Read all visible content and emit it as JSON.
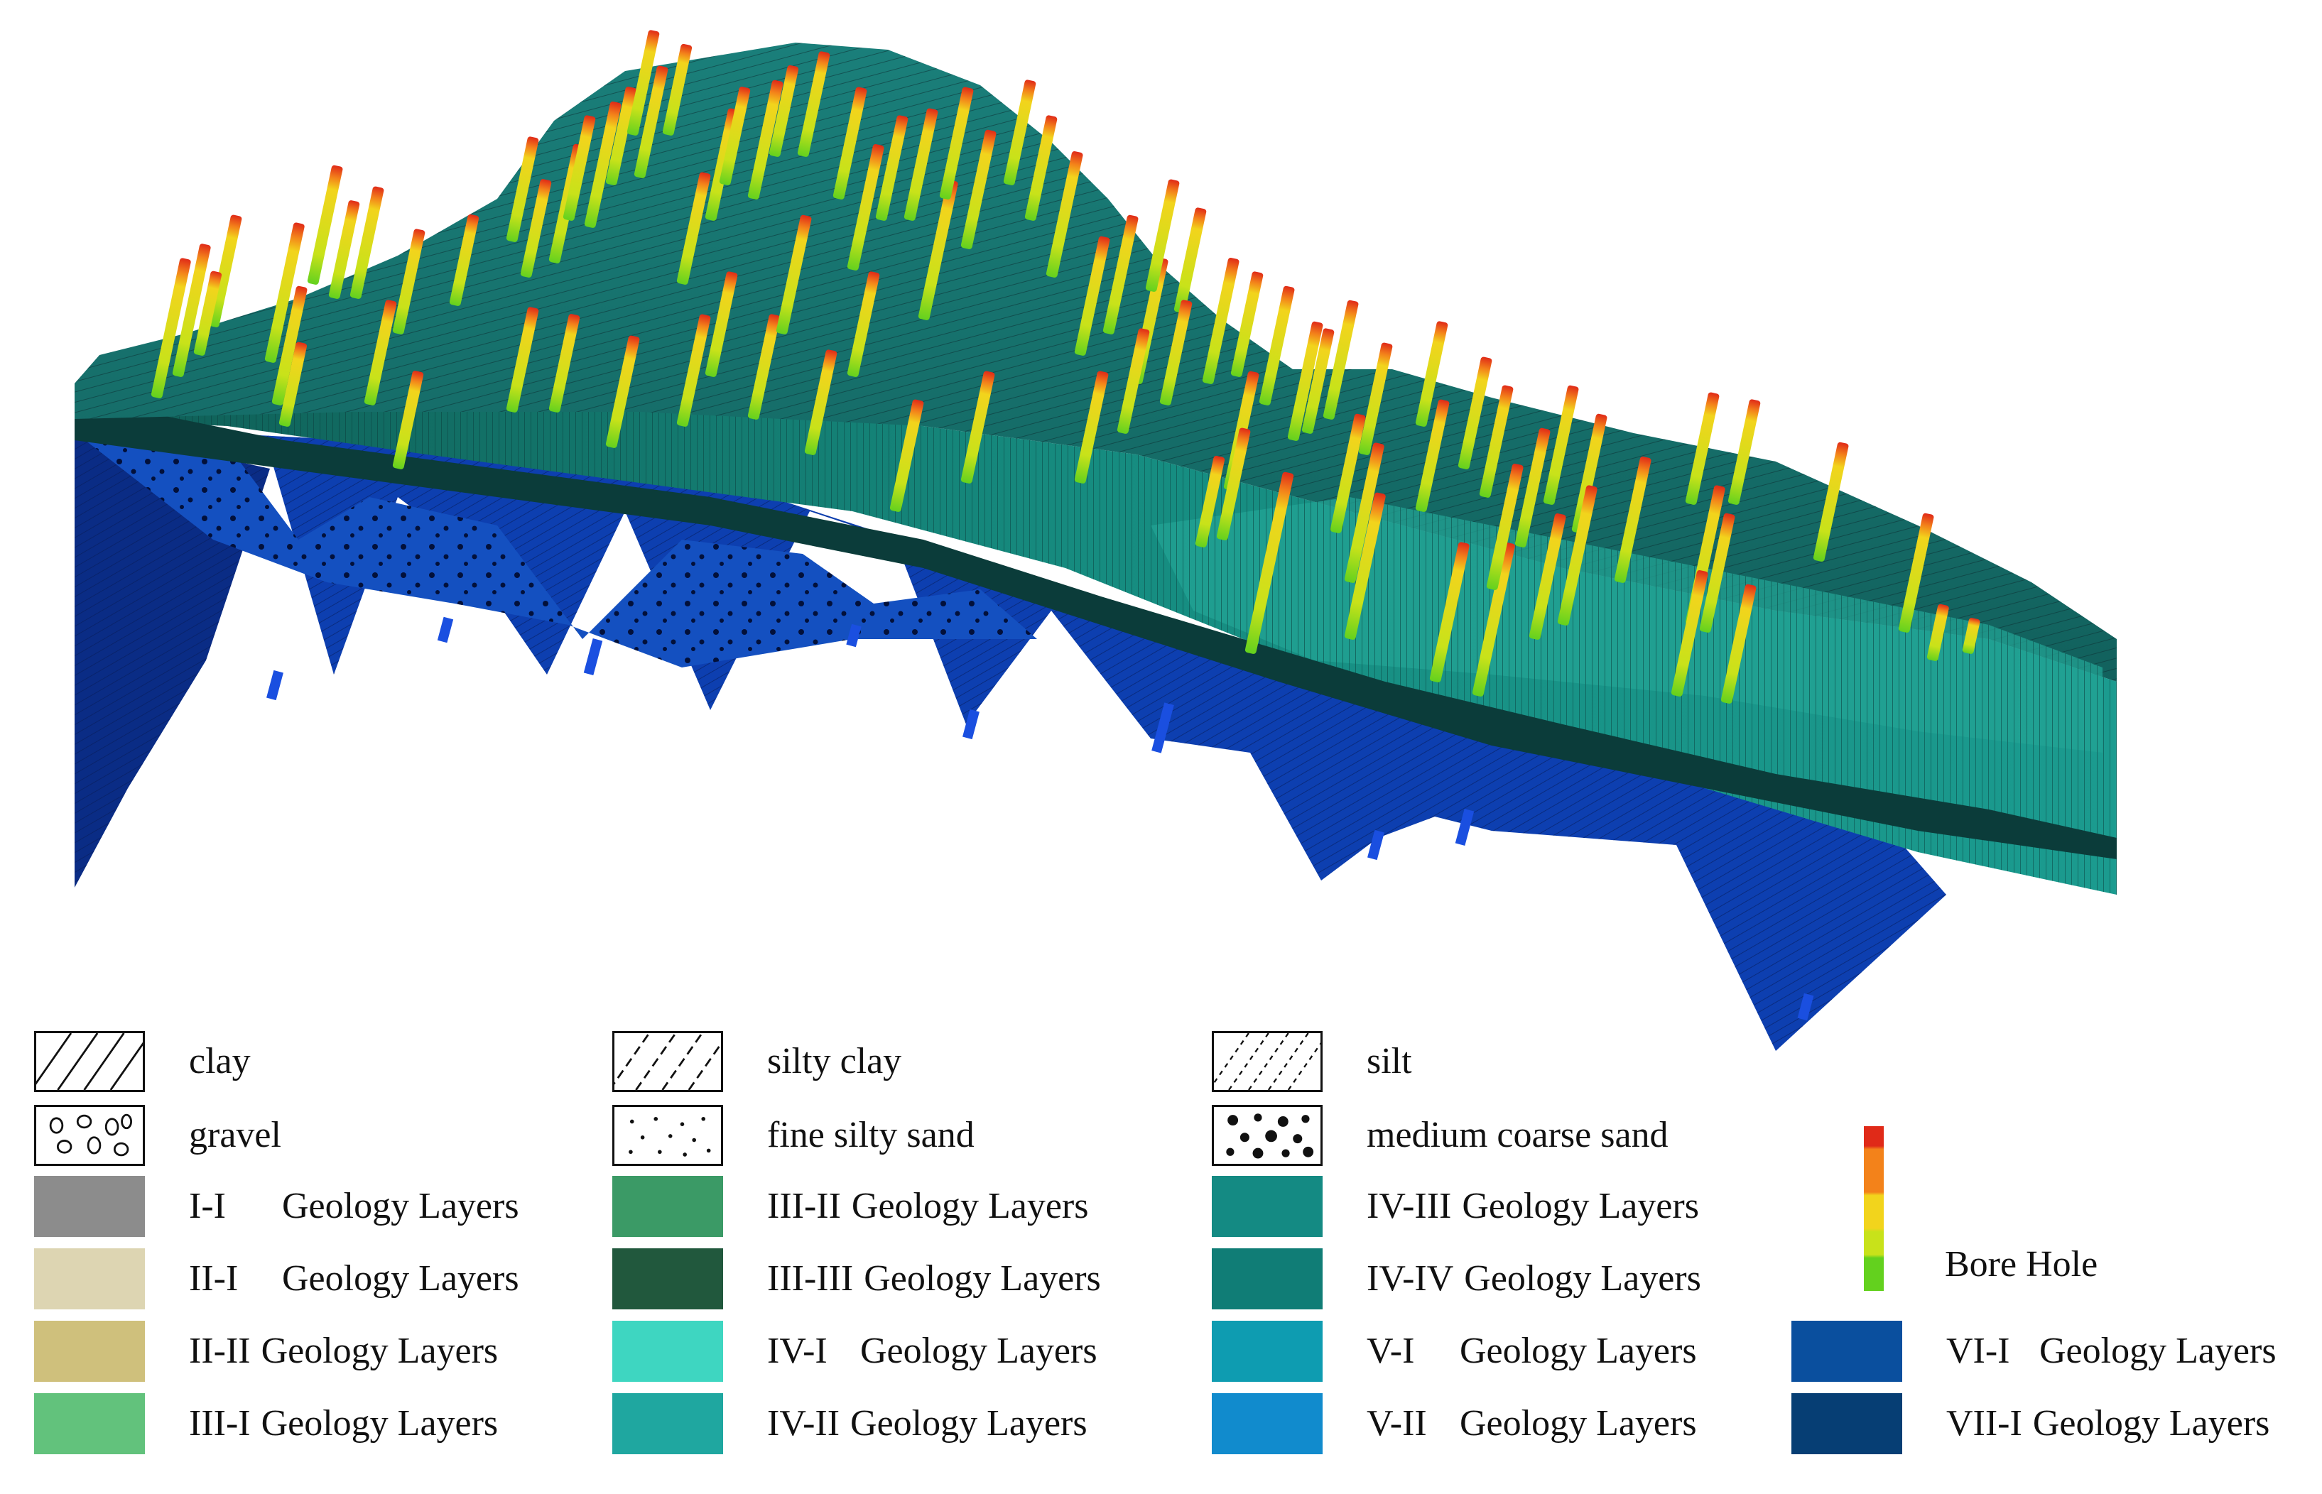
{
  "legend": {
    "patterns": [
      {
        "id": "clay",
        "label": "clay"
      },
      {
        "id": "silty-clay",
        "label": "silty clay"
      },
      {
        "id": "silt",
        "label": "silt"
      },
      {
        "id": "gravel",
        "label": "gravel"
      },
      {
        "id": "fine-silty-sand",
        "label": "fine silty sand"
      },
      {
        "id": "medium-coarse-sand",
        "label": "medium coarse sand"
      }
    ],
    "layers": [
      {
        "code": "I-I",
        "text": "Geology Layers",
        "color": "#8c8c8c"
      },
      {
        "code": "II-I",
        "text": "Geology Layers",
        "color": "#ddd5b2"
      },
      {
        "code": "II-II",
        "text": "Geology Layers",
        "color": "#cfc07c"
      },
      {
        "code": "III-I",
        "text": "Geology Layers",
        "color": "#62c27c"
      },
      {
        "code": "III-II",
        "text": "Geology Layers",
        "color": "#3b9a66"
      },
      {
        "code": "III-III",
        "text": "Geology Layers",
        "color": "#21583d"
      },
      {
        "code": "IV-I",
        "text": "Geology Layers",
        "color": "#3ed6c1"
      },
      {
        "code": "IV-II",
        "text": "Geology Layers",
        "color": "#1fa7a0"
      },
      {
        "code": "IV-III",
        "text": "Geology Layers",
        "color": "#148a83"
      },
      {
        "code": "IV-IV",
        "text": "Geology Layers",
        "color": "#107d76"
      },
      {
        "code": "V-I",
        "text": "Geology Layers",
        "color": "#0e9cb1"
      },
      {
        "code": "V-II",
        "text": "Geology Layers",
        "color": "#118bcd"
      },
      {
        "code": "VI-I",
        "text": "Geology Layers",
        "color": "#0a4f9e"
      },
      {
        "code": "VII-I",
        "text": "Geology Layers",
        "color": "#063e74"
      }
    ],
    "borehole": {
      "label": "Bore Hole",
      "colors": [
        "#e02a18",
        "#f3821a",
        "#f2d41c",
        "#c8e21a",
        "#63d11e"
      ]
    }
  }
}
